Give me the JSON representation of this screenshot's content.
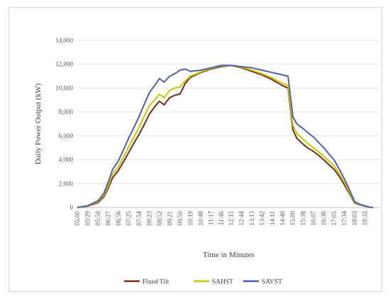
{
  "chart_data": {
    "type": "line",
    "xlabel": "Time in Minutes",
    "ylabel": "Daily Power Output (kW)",
    "ylim": [
      0,
      14000
    ],
    "yticks": [
      0,
      2000,
      4000,
      6000,
      8000,
      10000,
      12000,
      14000
    ],
    "ytick_labels": [
      "0",
      "2,000",
      "4,000",
      "6,000",
      "8,000",
      "10,000",
      "12,000",
      "14,000"
    ],
    "xlim_minutes": [
      300,
      1155
    ],
    "xtick_labels": [
      "05:00",
      "05:29",
      "05:58",
      "06:27",
      "06:56",
      "07:25",
      "07:54",
      "08:23",
      "08:52",
      "09:21",
      "09:50",
      "10:19",
      "10:48",
      "11:17",
      "11:46",
      "12:15",
      "12:44",
      "13:13",
      "13:42",
      "14:11",
      "14:40",
      "15:09",
      "15:38",
      "16:07",
      "16:36",
      "17:05",
      "17:34",
      "18:03",
      "18:32"
    ],
    "grid": "horizontal",
    "legend_position": "bottom",
    "x": [
      "05:00",
      "05:29",
      "05:58",
      "06:15",
      "06:27",
      "06:40",
      "06:56",
      "07:10",
      "07:25",
      "07:40",
      "07:54",
      "08:10",
      "08:23",
      "08:40",
      "08:52",
      "09:05",
      "09:21",
      "09:35",
      "09:50",
      "10:05",
      "10:19",
      "10:48",
      "11:17",
      "11:46",
      "12:15",
      "12:44",
      "13:13",
      "13:42",
      "14:11",
      "14:40",
      "14:55",
      "15:09",
      "15:20",
      "15:38",
      "15:50",
      "16:07",
      "16:20",
      "16:36",
      "16:50",
      "17:05",
      "17:20",
      "17:34",
      "17:50",
      "18:03",
      "18:15",
      "18:32",
      "18:45",
      "18:55"
    ],
    "series": [
      {
        "name": "Fixed Tilt",
        "color": "#7b2a0f",
        "values": [
          0,
          100,
          400,
          900,
          1600,
          2500,
          3100,
          3800,
          4600,
          5400,
          6100,
          7000,
          7800,
          8500,
          8900,
          8600,
          9200,
          9400,
          9500,
          10400,
          10900,
          11300,
          11600,
          11800,
          11900,
          11700,
          11400,
          11100,
          10700,
          10200,
          10000,
          6500,
          5800,
          5300,
          5000,
          4700,
          4400,
          4000,
          3600,
          3200,
          2600,
          1900,
          1100,
          400,
          250,
          120,
          20,
          0
        ]
      },
      {
        "name": "SAHST",
        "color": "#c8c800",
        "values": [
          0,
          120,
          480,
          1050,
          1800,
          2800,
          3400,
          4200,
          5100,
          5900,
          6700,
          7700,
          8500,
          9100,
          9500,
          9200,
          9800,
          10000,
          10100,
          10600,
          11000,
          11350,
          11650,
          11850,
          11900,
          11750,
          11500,
          11200,
          10850,
          10400,
          10200,
          6900,
          6200,
          5700,
          5400,
          5000,
          4700,
          4300,
          3900,
          3500,
          2800,
          2100,
          1200,
          450,
          280,
          130,
          25,
          0
        ]
      },
      {
        "name": "SAVST",
        "color": "#4f60b0",
        "values": [
          0,
          150,
          550,
          1200,
          2100,
          3200,
          3900,
          4800,
          5800,
          6700,
          7600,
          8700,
          9600,
          10300,
          10800,
          10500,
          11000,
          11200,
          11500,
          11600,
          11400,
          11500,
          11700,
          11900,
          11900,
          11800,
          11700,
          11500,
          11300,
          11100,
          11000,
          7600,
          7000,
          6600,
          6300,
          5900,
          5500,
          5000,
          4500,
          4000,
          3200,
          2400,
          1400,
          500,
          300,
          150,
          30,
          0
        ]
      }
    ]
  }
}
